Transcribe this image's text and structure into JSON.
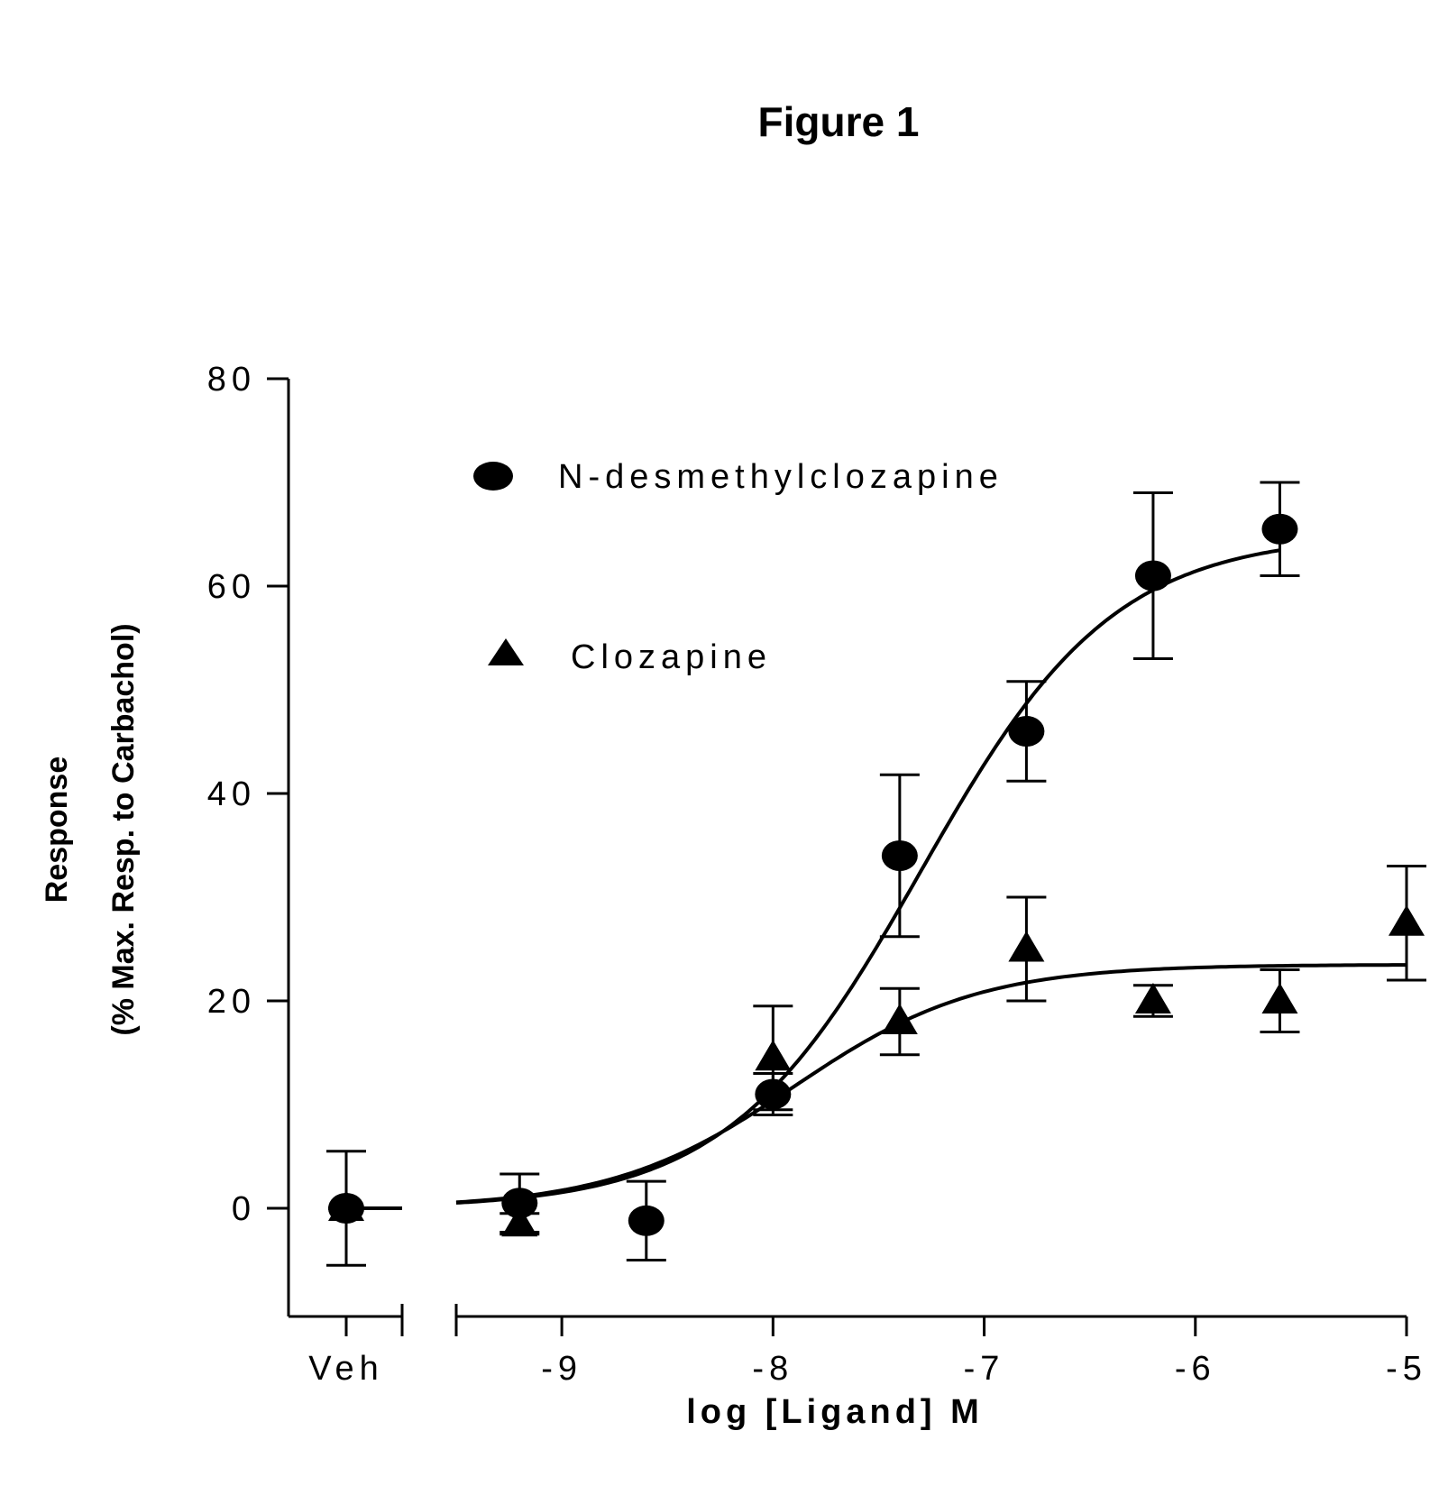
{
  "figure_title": "Figure 1",
  "chart_data": {
    "type": "scatter",
    "title": "Figure 1",
    "xlabel": "log [Ligand] M",
    "ylabel_line1": "Response",
    "ylabel_line2": "(% Max. Resp. to Carbachol)",
    "ylim": [
      -10,
      80
    ],
    "yticks": [
      0,
      20,
      40,
      60,
      80
    ],
    "xlim": [
      -9.5,
      -5
    ],
    "xticks": [
      -9,
      -8,
      -7,
      -6,
      -5
    ],
    "x_break_label": "Veh",
    "legend_position": "upper-left",
    "series": [
      {
        "name": "N-desmethylclozapine",
        "marker": "circle",
        "veh": {
          "y": 0,
          "err": 5.5
        },
        "points": [
          {
            "x": -9.2,
            "y": 0.5,
            "err": 2.8
          },
          {
            "x": -8.6,
            "y": -1.2,
            "err": 3.8
          },
          {
            "x": -8.0,
            "y": 11,
            "err": 2.0
          },
          {
            "x": -7.4,
            "y": 34,
            "err": 7.8
          },
          {
            "x": -6.8,
            "y": 46,
            "err": 4.8
          },
          {
            "x": -6.2,
            "y": 61,
            "err": 8.0
          },
          {
            "x": -5.6,
            "y": 65.5,
            "err": 4.5
          }
        ],
        "fit": {
          "bottom": 0,
          "top": 65,
          "logEC50": -7.3,
          "hill": 0.95
        }
      },
      {
        "name": "Clozapine",
        "marker": "triangle",
        "veh": {
          "y": 0,
          "err": 0
        },
        "points": [
          {
            "x": -9.2,
            "y": -1.5,
            "err": 1.0
          },
          {
            "x": -8.0,
            "y": 14.5,
            "err": 5.0
          },
          {
            "x": -7.4,
            "y": 18,
            "err": 3.2
          },
          {
            "x": -6.8,
            "y": 25,
            "err": 5.0
          },
          {
            "x": -6.2,
            "y": 20,
            "err": 1.5
          },
          {
            "x": -5.6,
            "y": 20,
            "err": 3.0
          },
          {
            "x": -5.0,
            "y": 27.5,
            "err": 5.5
          }
        ],
        "fit": {
          "bottom": 0,
          "top": 23.5,
          "logEC50": -7.9,
          "hill": 1.0
        }
      }
    ]
  }
}
